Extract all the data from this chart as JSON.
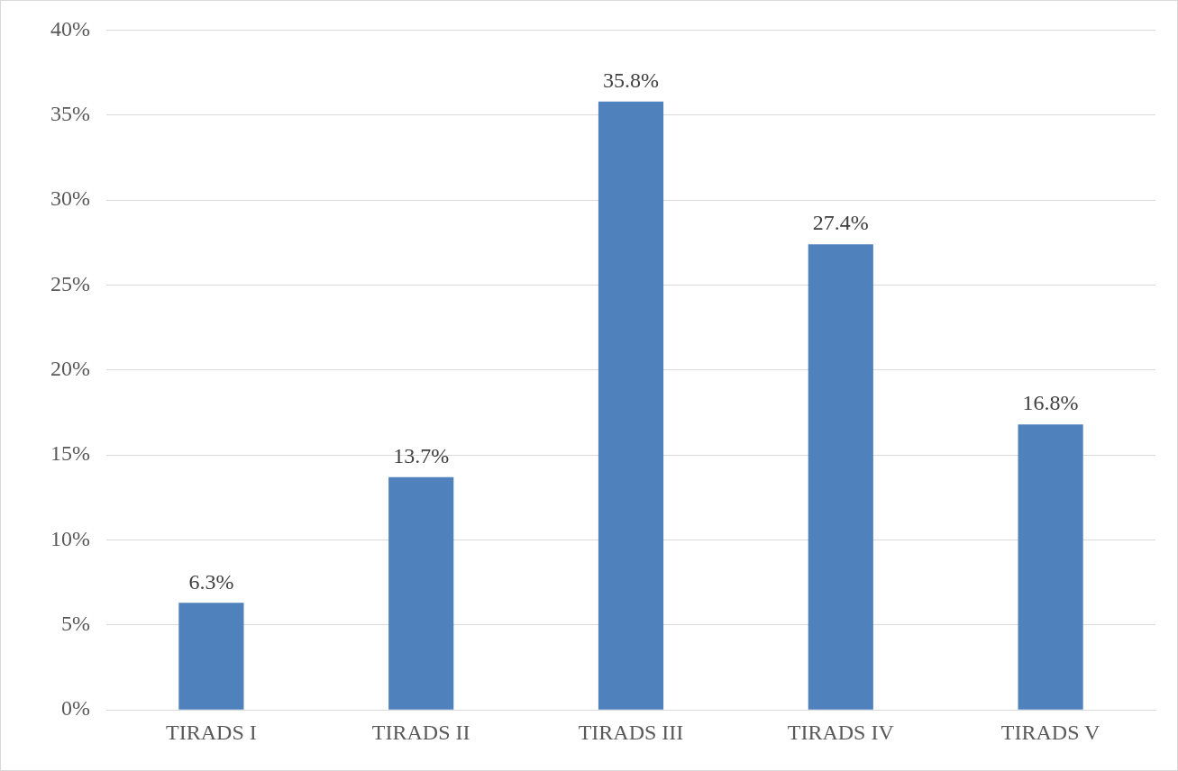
{
  "chart_data": {
    "type": "bar",
    "categories": [
      "TIRADS I",
      "TIRADS II",
      "TIRADS III",
      "TIRADS IV",
      "TIRADS V"
    ],
    "values": [
      6.3,
      13.7,
      35.8,
      27.4,
      16.8
    ],
    "value_labels": [
      "6.3%",
      "13.7%",
      "35.8%",
      "27.4%",
      "16.8%"
    ],
    "color": "#4f81bd",
    "ylim": [
      0,
      40
    ],
    "yticks": [
      {
        "value": 0,
        "label": "0%"
      },
      {
        "value": 5,
        "label": "5%"
      },
      {
        "value": 10,
        "label": "10%"
      },
      {
        "value": 15,
        "label": "15%"
      },
      {
        "value": 20,
        "label": "20%"
      },
      {
        "value": 25,
        "label": "25%"
      },
      {
        "value": 30,
        "label": "30%"
      },
      {
        "value": 35,
        "label": "35%"
      },
      {
        "value": 40,
        "label": "40%"
      }
    ],
    "grid": "y",
    "legend": false
  }
}
